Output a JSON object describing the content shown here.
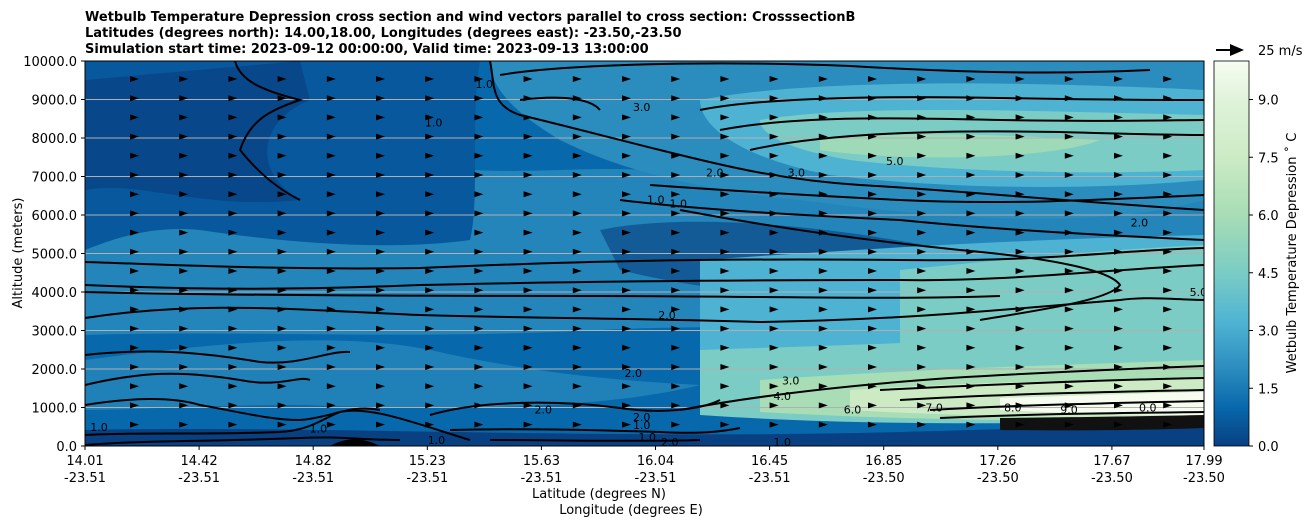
{
  "chart_data": {
    "type": "heatmap",
    "title_lines": [
      "Wetbulb Temperature Depression cross section and wind vectors parallel to cross section: CrosssectionB",
      "Latitudes (degrees north): 14.00,18.00, Longitudes (degrees east): -23.50,-23.50",
      "Simulation start time: 2023-09-12 00:00:00, Valid time: 2023-09-13 13:00:00"
    ],
    "xlabel": "Latitude (degrees N)",
    "xlabel2": "Longitude (degrees E)",
    "ylabel": "Altitude (meters)",
    "colorbar_label": "Wetbulb Temperature Depression ˚ C",
    "quiver_key": "25 m/s",
    "x_ticks": [
      {
        "lat": "14.01",
        "lon": "-23.51"
      },
      {
        "lat": "14.42",
        "lon": "-23.51"
      },
      {
        "lat": "14.82",
        "lon": "-23.51"
      },
      {
        "lat": "15.23",
        "lon": "-23.51"
      },
      {
        "lat": "15.63",
        "lon": "-23.51"
      },
      {
        "lat": "16.04",
        "lon": "-23.51"
      },
      {
        "lat": "16.45",
        "lon": "-23.51"
      },
      {
        "lat": "16.85",
        "lon": "-23.50"
      },
      {
        "lat": "17.26",
        "lon": "-23.50"
      },
      {
        "lat": "17.67",
        "lon": "-23.50"
      },
      {
        "lat": "17.99",
        "lon": "-23.50"
      }
    ],
    "y_ticks": [
      "0.0",
      "1000.0",
      "2000.0",
      "3000.0",
      "4000.0",
      "5000.0",
      "6000.0",
      "7000.0",
      "8000.0",
      "9000.0",
      "10000.0"
    ],
    "ylim": [
      0,
      10000
    ],
    "xlim": [
      14.01,
      17.99
    ],
    "colorbar_ticks": [
      "0.0",
      "1.5",
      "3.0",
      "4.5",
      "6.0",
      "7.5",
      "9.0"
    ],
    "colorbar_range": [
      0,
      10
    ],
    "contour_labels": [
      {
        "text": "1.0",
        "lat": 15.43,
        "alt": 9400
      },
      {
        "text": "1.0",
        "lat": 15.25,
        "alt": 8400
      },
      {
        "text": "3.0",
        "lat": 15.99,
        "alt": 8800
      },
      {
        "text": "5.0",
        "lat": 16.89,
        "alt": 7400
      },
      {
        "text": "2.0",
        "lat": 16.25,
        "alt": 7100
      },
      {
        "text": "3.0",
        "lat": 16.54,
        "alt": 7100
      },
      {
        "text": "1.0",
        "lat": 16.04,
        "alt": 6400
      },
      {
        "text": "1.0",
        "lat": 16.12,
        "alt": 6300
      },
      {
        "text": "2.0",
        "lat": 17.76,
        "alt": 5800
      },
      {
        "text": "5.0",
        "lat": 17.97,
        "alt": 4000
      },
      {
        "text": "2.0",
        "lat": 16.08,
        "alt": 3400
      },
      {
        "text": "2.0",
        "lat": 15.96,
        "alt": 1900
      },
      {
        "text": "3.0",
        "lat": 16.52,
        "alt": 1700
      },
      {
        "text": "4.0",
        "lat": 16.49,
        "alt": 1300
      },
      {
        "text": "2.0",
        "lat": 15.64,
        "alt": 950
      },
      {
        "text": "2.0",
        "lat": 15.99,
        "alt": 750
      },
      {
        "text": "1.0",
        "lat": 15.99,
        "alt": 550
      },
      {
        "text": "1.0",
        "lat": 16.01,
        "alt": 230
      },
      {
        "text": "2.0",
        "lat": 16.09,
        "alt": 100
      },
      {
        "text": "1.0",
        "lat": 16.49,
        "alt": 100
      },
      {
        "text": "1.0",
        "lat": 14.06,
        "alt": 500
      },
      {
        "text": "1.0",
        "lat": 14.84,
        "alt": 450
      },
      {
        "text": "1.0",
        "lat": 15.26,
        "alt": 150
      },
      {
        "text": "6.0",
        "lat": 16.74,
        "alt": 950
      },
      {
        "text": "7.0",
        "lat": 17.03,
        "alt": 1000
      },
      {
        "text": "8.0",
        "lat": 17.31,
        "alt": 1000
      },
      {
        "text": "9.0",
        "lat": 17.51,
        "alt": 950
      },
      {
        "text": "0.0",
        "lat": 17.79,
        "alt": 1000
      }
    ]
  }
}
